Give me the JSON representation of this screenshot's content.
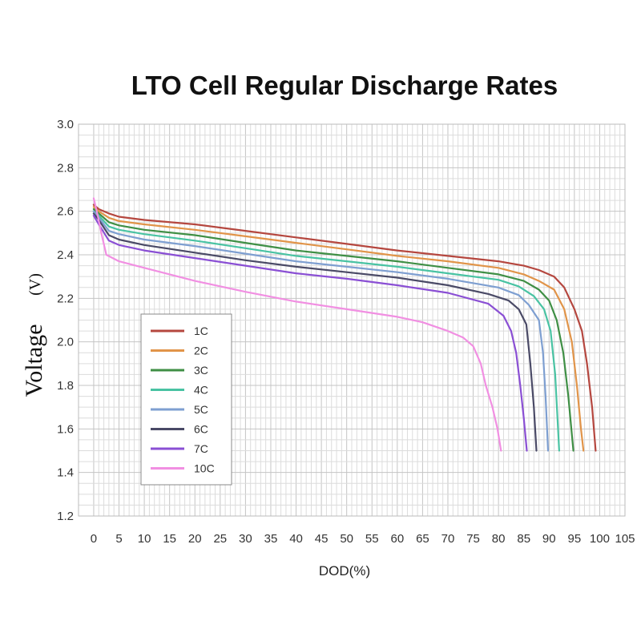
{
  "chart_data": {
    "type": "line",
    "title": "LTO Cell Regular Discharge Rates",
    "xlabel": "DOD(%)",
    "ylabel": "Voltage",
    "ylabel_unit": "(V)",
    "xlim": [
      -3,
      105
    ],
    "ylim": [
      1.2,
      3.0
    ],
    "x_ticks": [
      0,
      5,
      10,
      15,
      20,
      25,
      30,
      35,
      40,
      45,
      50,
      55,
      60,
      65,
      70,
      75,
      80,
      85,
      90,
      95,
      100,
      105
    ],
    "y_ticks": [
      "1.2",
      "1.4",
      "1.6",
      "1.8",
      "2.0",
      "2.2",
      "2.4",
      "2.6",
      "2.8",
      "3.0"
    ],
    "grid": true,
    "legend_position": "lower-left",
    "series": [
      {
        "name": "1C",
        "color": "#b5473f",
        "points": [
          [
            0,
            2.63
          ],
          [
            1,
            2.61
          ],
          [
            3,
            2.59
          ],
          [
            5,
            2.575
          ],
          [
            10,
            2.56
          ],
          [
            20,
            2.54
          ],
          [
            30,
            2.51
          ],
          [
            40,
            2.48
          ],
          [
            50,
            2.45
          ],
          [
            60,
            2.42
          ],
          [
            70,
            2.395
          ],
          [
            80,
            2.37
          ],
          [
            85,
            2.35
          ],
          [
            88,
            2.33
          ],
          [
            91,
            2.3
          ],
          [
            93,
            2.25
          ],
          [
            95,
            2.15
          ],
          [
            96.5,
            2.05
          ],
          [
            97.5,
            1.9
          ],
          [
            98.5,
            1.7
          ],
          [
            99.2,
            1.5
          ]
        ]
      },
      {
        "name": "2C",
        "color": "#e19449",
        "points": [
          [
            0,
            2.62
          ],
          [
            1,
            2.6
          ],
          [
            3,
            2.57
          ],
          [
            5,
            2.555
          ],
          [
            10,
            2.54
          ],
          [
            20,
            2.515
          ],
          [
            30,
            2.485
          ],
          [
            40,
            2.455
          ],
          [
            50,
            2.425
          ],
          [
            60,
            2.395
          ],
          [
            70,
            2.37
          ],
          [
            80,
            2.34
          ],
          [
            85,
            2.31
          ],
          [
            88,
            2.28
          ],
          [
            91,
            2.24
          ],
          [
            93,
            2.15
          ],
          [
            94.5,
            2.0
          ],
          [
            95.5,
            1.8
          ],
          [
            96.3,
            1.6
          ],
          [
            96.8,
            1.5
          ]
        ]
      },
      {
        "name": "3C",
        "color": "#3f8f45",
        "points": [
          [
            0,
            2.61
          ],
          [
            1,
            2.59
          ],
          [
            3,
            2.55
          ],
          [
            5,
            2.535
          ],
          [
            10,
            2.515
          ],
          [
            20,
            2.49
          ],
          [
            30,
            2.455
          ],
          [
            40,
            2.42
          ],
          [
            50,
            2.395
          ],
          [
            60,
            2.37
          ],
          [
            70,
            2.34
          ],
          [
            80,
            2.31
          ],
          [
            85,
            2.28
          ],
          [
            88,
            2.24
          ],
          [
            90,
            2.19
          ],
          [
            91.5,
            2.1
          ],
          [
            92.8,
            1.95
          ],
          [
            93.8,
            1.75
          ],
          [
            94.8,
            1.5
          ]
        ]
      },
      {
        "name": "4C",
        "color": "#49c3a3",
        "points": [
          [
            0,
            2.6
          ],
          [
            1,
            2.58
          ],
          [
            3,
            2.53
          ],
          [
            5,
            2.515
          ],
          [
            10,
            2.495
          ],
          [
            20,
            2.465
          ],
          [
            30,
            2.43
          ],
          [
            40,
            2.395
          ],
          [
            50,
            2.37
          ],
          [
            60,
            2.345
          ],
          [
            70,
            2.315
          ],
          [
            80,
            2.285
          ],
          [
            84,
            2.255
          ],
          [
            87,
            2.21
          ],
          [
            89,
            2.15
          ],
          [
            90.3,
            2.05
          ],
          [
            91.2,
            1.85
          ],
          [
            92,
            1.5
          ]
        ]
      },
      {
        "name": "5C",
        "color": "#7e9fd1",
        "points": [
          [
            0,
            2.6
          ],
          [
            1,
            2.57
          ],
          [
            3,
            2.51
          ],
          [
            5,
            2.495
          ],
          [
            10,
            2.47
          ],
          [
            20,
            2.44
          ],
          [
            30,
            2.405
          ],
          [
            40,
            2.37
          ],
          [
            50,
            2.345
          ],
          [
            60,
            2.32
          ],
          [
            70,
            2.29
          ],
          [
            80,
            2.25
          ],
          [
            84,
            2.215
          ],
          [
            86,
            2.17
          ],
          [
            88,
            2.1
          ],
          [
            88.8,
            1.95
          ],
          [
            89.3,
            1.75
          ],
          [
            89.8,
            1.5
          ]
        ]
      },
      {
        "name": "6C",
        "color": "#4a4a66",
        "points": [
          [
            0,
            2.59
          ],
          [
            1,
            2.56
          ],
          [
            3,
            2.49
          ],
          [
            5,
            2.47
          ],
          [
            10,
            2.445
          ],
          [
            20,
            2.41
          ],
          [
            30,
            2.375
          ],
          [
            40,
            2.345
          ],
          [
            50,
            2.32
          ],
          [
            60,
            2.295
          ],
          [
            70,
            2.26
          ],
          [
            78,
            2.22
          ],
          [
            82,
            2.19
          ],
          [
            84,
            2.15
          ],
          [
            85.5,
            2.08
          ],
          [
            86.3,
            1.9
          ],
          [
            87,
            1.7
          ],
          [
            87.5,
            1.5
          ]
        ]
      },
      {
        "name": "7C",
        "color": "#8a4fd4",
        "points": [
          [
            0,
            2.58
          ],
          [
            1,
            2.54
          ],
          [
            3,
            2.465
          ],
          [
            5,
            2.445
          ],
          [
            10,
            2.42
          ],
          [
            20,
            2.385
          ],
          [
            30,
            2.35
          ],
          [
            40,
            2.315
          ],
          [
            50,
            2.29
          ],
          [
            60,
            2.26
          ],
          [
            70,
            2.225
          ],
          [
            78,
            2.175
          ],
          [
            81,
            2.12
          ],
          [
            82.5,
            2.05
          ],
          [
            83.5,
            1.95
          ],
          [
            84.3,
            1.8
          ],
          [
            85,
            1.65
          ],
          [
            85.6,
            1.5
          ]
        ]
      },
      {
        "name": "10C",
        "color": "#f18fe2",
        "points": [
          [
            0,
            2.66
          ],
          [
            0.8,
            2.58
          ],
          [
            1.5,
            2.5
          ],
          [
            2.5,
            2.4
          ],
          [
            5,
            2.37
          ],
          [
            10,
            2.34
          ],
          [
            20,
            2.28
          ],
          [
            30,
            2.23
          ],
          [
            40,
            2.185
          ],
          [
            50,
            2.15
          ],
          [
            60,
            2.115
          ],
          [
            65,
            2.09
          ],
          [
            70,
            2.05
          ],
          [
            73,
            2.02
          ],
          [
            75,
            1.98
          ],
          [
            76.5,
            1.9
          ],
          [
            77.5,
            1.8
          ],
          [
            78.8,
            1.7
          ],
          [
            79.8,
            1.6
          ],
          [
            80.5,
            1.5
          ]
        ]
      }
    ]
  }
}
